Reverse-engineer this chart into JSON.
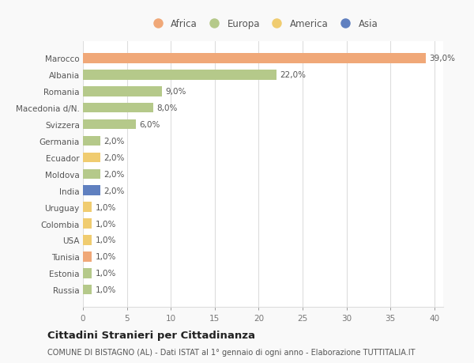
{
  "countries": [
    "Marocco",
    "Albania",
    "Romania",
    "Macedonia d/N.",
    "Svizzera",
    "Germania",
    "Ecuador",
    "Moldova",
    "India",
    "Uruguay",
    "Colombia",
    "USA",
    "Tunisia",
    "Estonia",
    "Russia"
  ],
  "values": [
    39.0,
    22.0,
    9.0,
    8.0,
    6.0,
    2.0,
    2.0,
    2.0,
    2.0,
    1.0,
    1.0,
    1.0,
    1.0,
    1.0,
    1.0
  ],
  "labels": [
    "39,0%",
    "22,0%",
    "9,0%",
    "8,0%",
    "6,0%",
    "2,0%",
    "2,0%",
    "2,0%",
    "2,0%",
    "1,0%",
    "1,0%",
    "1,0%",
    "1,0%",
    "1,0%",
    "1,0%"
  ],
  "continents": [
    "Africa",
    "Europa",
    "Europa",
    "Europa",
    "Europa",
    "Europa",
    "America",
    "Europa",
    "Asia",
    "America",
    "America",
    "America",
    "Africa",
    "Europa",
    "Europa"
  ],
  "continent_colors": {
    "Africa": "#F0A878",
    "Europa": "#B5C98A",
    "America": "#F0CC70",
    "Asia": "#6080C0"
  },
  "legend_order": [
    "Africa",
    "Europa",
    "America",
    "Asia"
  ],
  "title": "Cittadini Stranieri per Cittadinanza",
  "subtitle": "COMUNE DI BISTAGNO (AL) - Dati ISTAT al 1° gennaio di ogni anno - Elaborazione TUTTITALIA.IT",
  "xlim": [
    0,
    41
  ],
  "xticks": [
    0,
    5,
    10,
    15,
    20,
    25,
    30,
    35,
    40
  ],
  "background_color": "#f9f9f9",
  "plot_bg_color": "#ffffff",
  "grid_color": "#dddddd",
  "bar_height": 0.6,
  "title_fontsize": 9.5,
  "subtitle_fontsize": 7,
  "label_fontsize": 7.5,
  "tick_fontsize": 7.5,
  "legend_fontsize": 8.5
}
